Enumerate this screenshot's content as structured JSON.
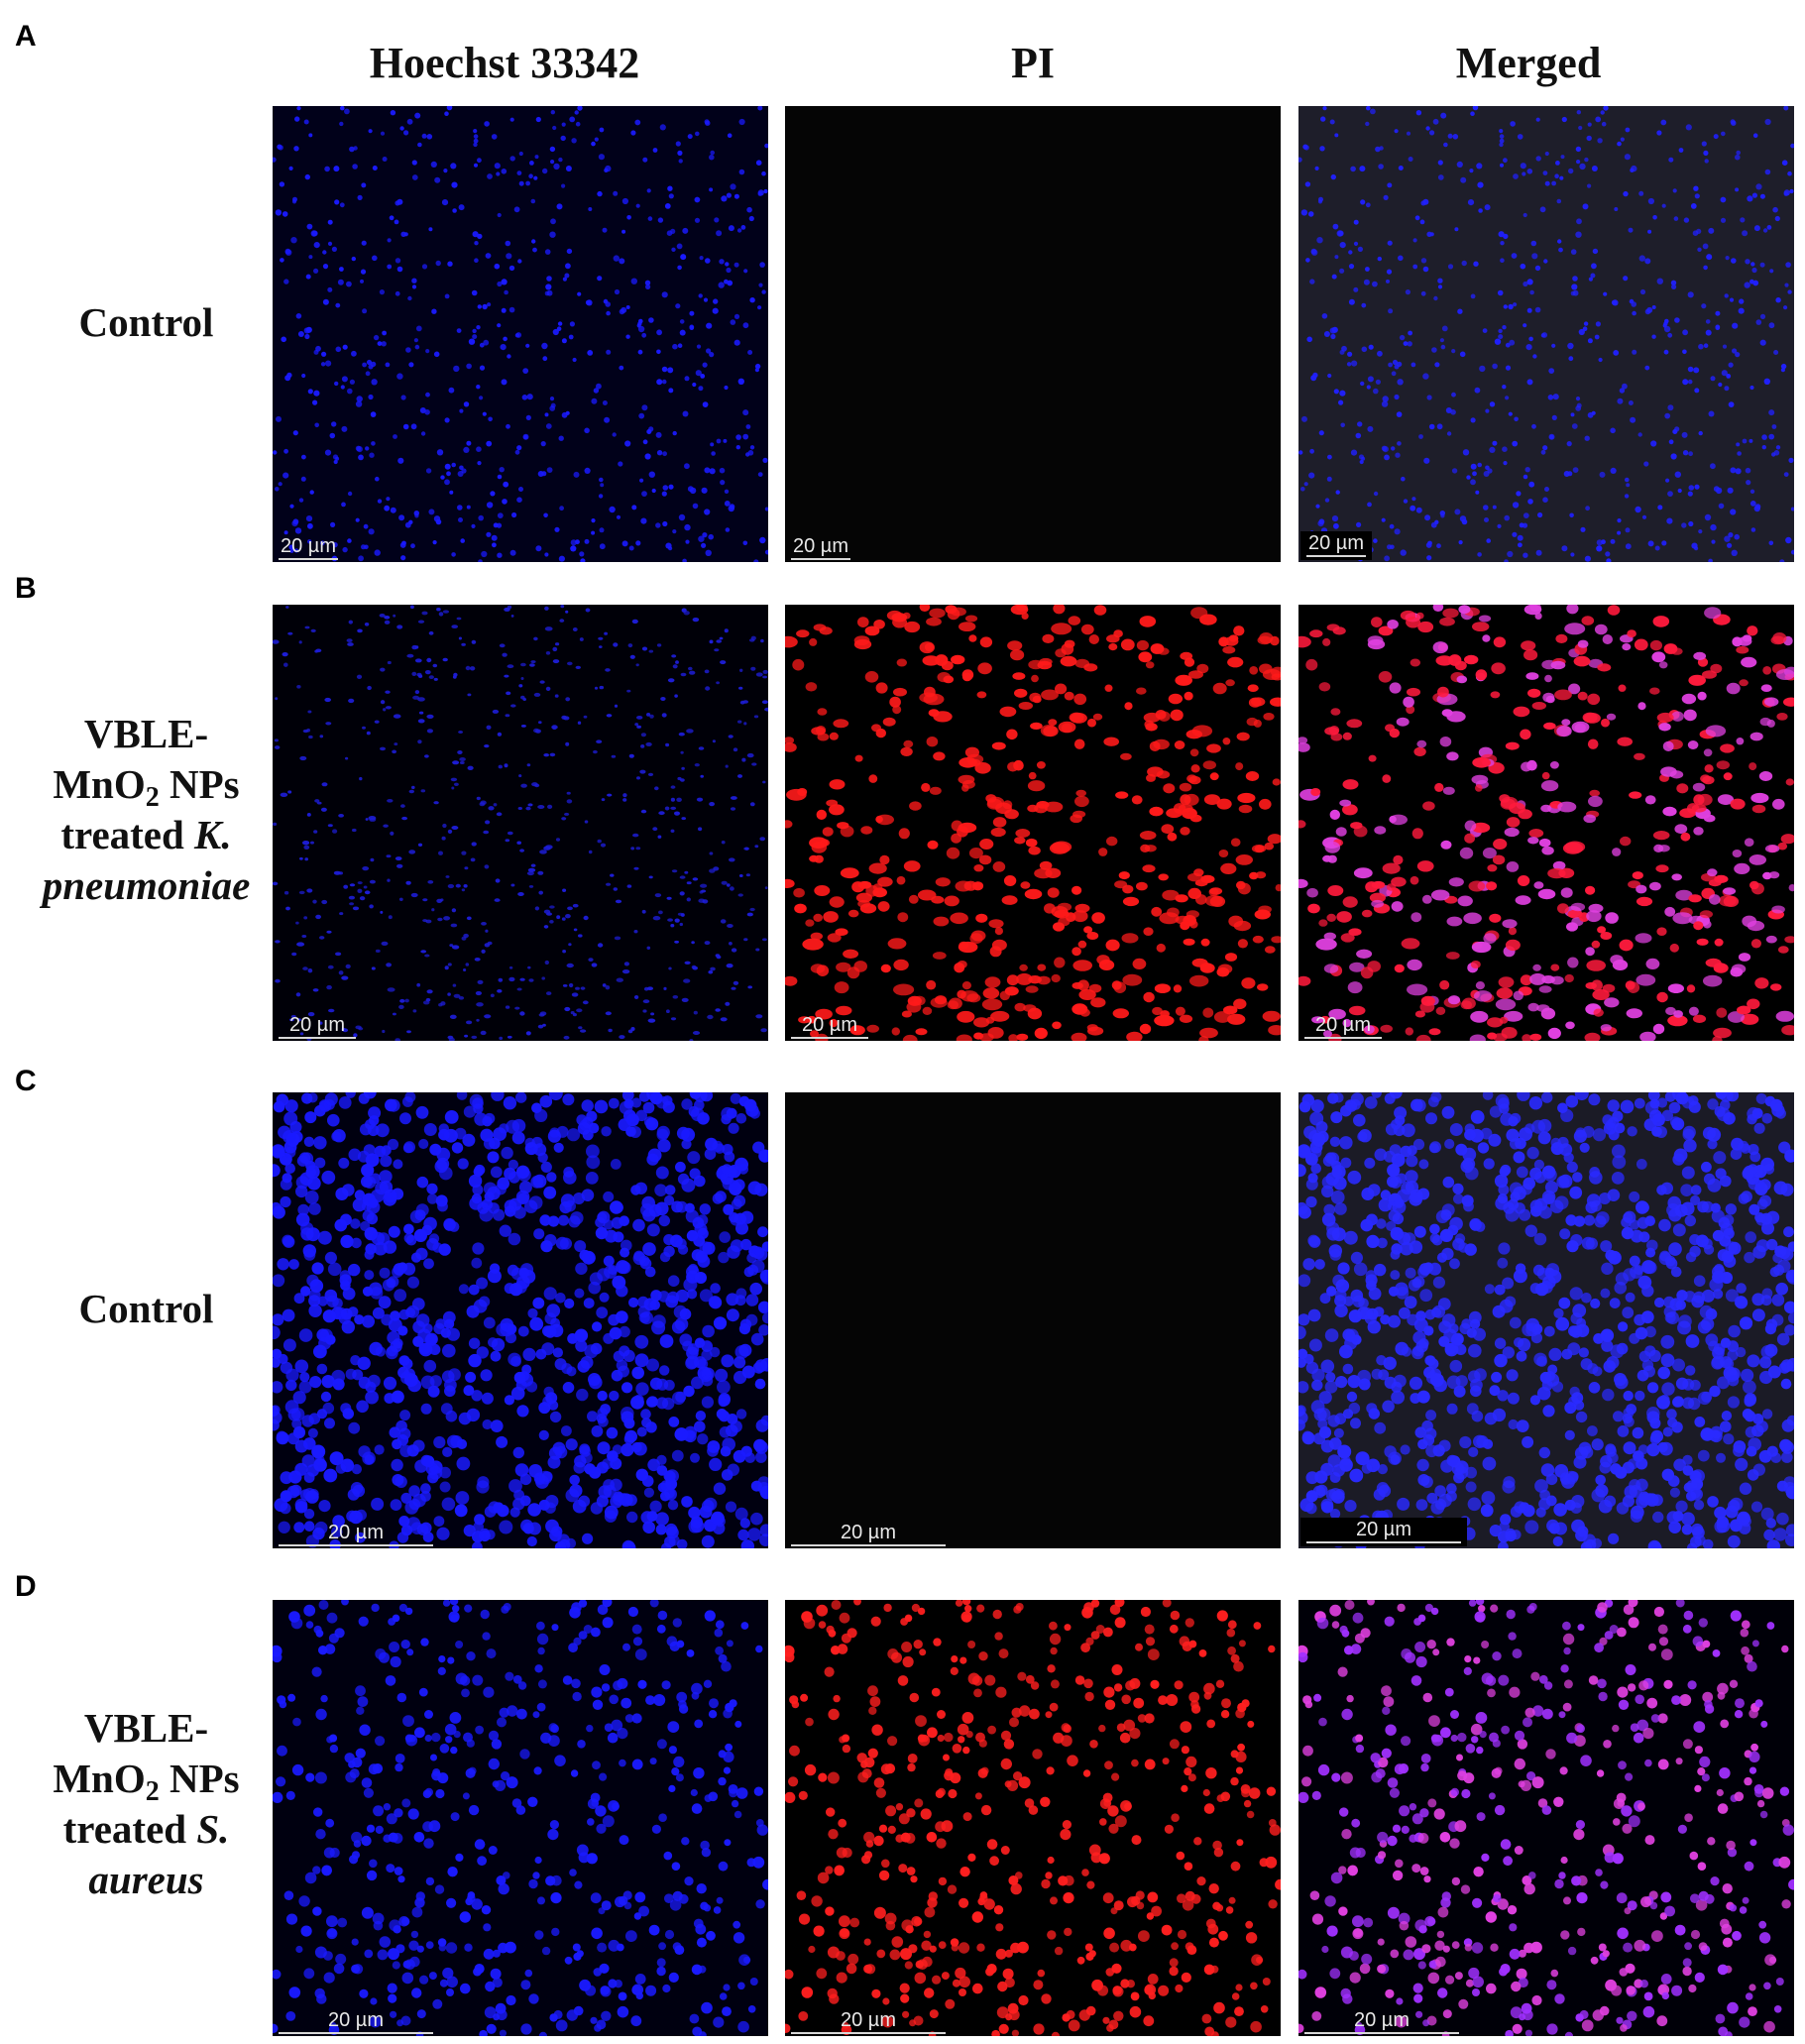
{
  "figure": {
    "column_headers": [
      "Hoechst 33342",
      "PI",
      "Merged"
    ],
    "panels": [
      {
        "letter": "A",
        "label_lines": [
          "Control"
        ],
        "scale_bar": "20 µm",
        "images": [
          {
            "channel": "Hoechst 33342",
            "background": "#01011a",
            "dot_color": "#1a1aff",
            "density": "sparse"
          },
          {
            "channel": "PI",
            "background": "#050505",
            "dot_color": "#000000",
            "density": "none"
          },
          {
            "channel": "Merged",
            "background": "#1e1e2a",
            "dot_color": "#2020ff",
            "density": "sparse"
          }
        ]
      },
      {
        "letter": "B",
        "label_lines": [
          "VBLE-",
          "MnO2 NPs",
          "treated K.",
          "pneumoniae"
        ],
        "scale_bar": "20 µm",
        "images": [
          {
            "channel": "Hoechst 33342",
            "background": "#000008",
            "dot_color": "#1d1dd8",
            "density": "sparse"
          },
          {
            "channel": "PI",
            "background": "#000000",
            "dot_color": "#ff1a1a",
            "density": "medium"
          },
          {
            "channel": "Merged",
            "background": "#000000",
            "dot_color": "#ff1a3c",
            "dot_color_alt": "#e040e0",
            "density": "medium"
          }
        ]
      },
      {
        "letter": "C",
        "label_lines": [
          "Control"
        ],
        "scale_bar": "20 µm",
        "images": [
          {
            "channel": "Hoechst 33342",
            "background": "#000010",
            "dot_color": "#1a1aff",
            "density": "dense"
          },
          {
            "channel": "PI",
            "background": "#050505",
            "dot_color": "#000000",
            "density": "none"
          },
          {
            "channel": "Merged",
            "background": "#1b1b26",
            "dot_color": "#2a2aff",
            "density": "dense"
          }
        ]
      },
      {
        "letter": "D",
        "label_lines": [
          "VBLE-",
          "MnO2 NPs",
          "treated S.",
          "aureus"
        ],
        "scale_bar": "20 µm",
        "images": [
          {
            "channel": "Hoechst 33342",
            "background": "#000010",
            "dot_color": "#1a1aff",
            "density": "medium"
          },
          {
            "channel": "PI",
            "background": "#000000",
            "dot_color": "#ff1f1f",
            "density": "medium"
          },
          {
            "channel": "Merged",
            "background": "#000008",
            "dot_color": "#a030ff",
            "dot_color_alt": "#e040e0",
            "density": "medium"
          }
        ]
      }
    ]
  }
}
